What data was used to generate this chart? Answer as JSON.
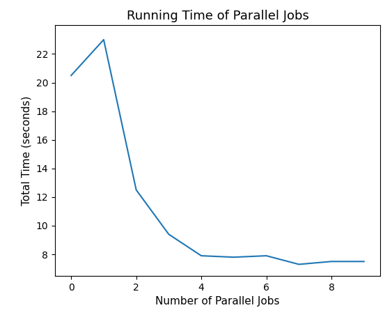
{
  "x": [
    0,
    1,
    2,
    3,
    4,
    5,
    6,
    7,
    8,
    9
  ],
  "y": [
    20.5,
    23.0,
    12.5,
    9.4,
    7.9,
    7.8,
    7.9,
    7.3,
    7.5,
    7.5
  ],
  "title": "Running Time of Parallel Jobs",
  "xlabel": "Number of Parallel Jobs",
  "ylabel": "Total Time (seconds)",
  "line_color": "#1f77b4",
  "line_width": 1.5,
  "xlim": [
    -0.5,
    9.5
  ],
  "ylim": [
    6.5,
    24.0
  ],
  "xticks": [
    0,
    2,
    4,
    6,
    8
  ],
  "yticks": [
    8,
    10,
    12,
    14,
    16,
    18,
    20,
    22
  ],
  "background_color": "#ffffff",
  "title_fontsize": 13,
  "label_fontsize": 11
}
